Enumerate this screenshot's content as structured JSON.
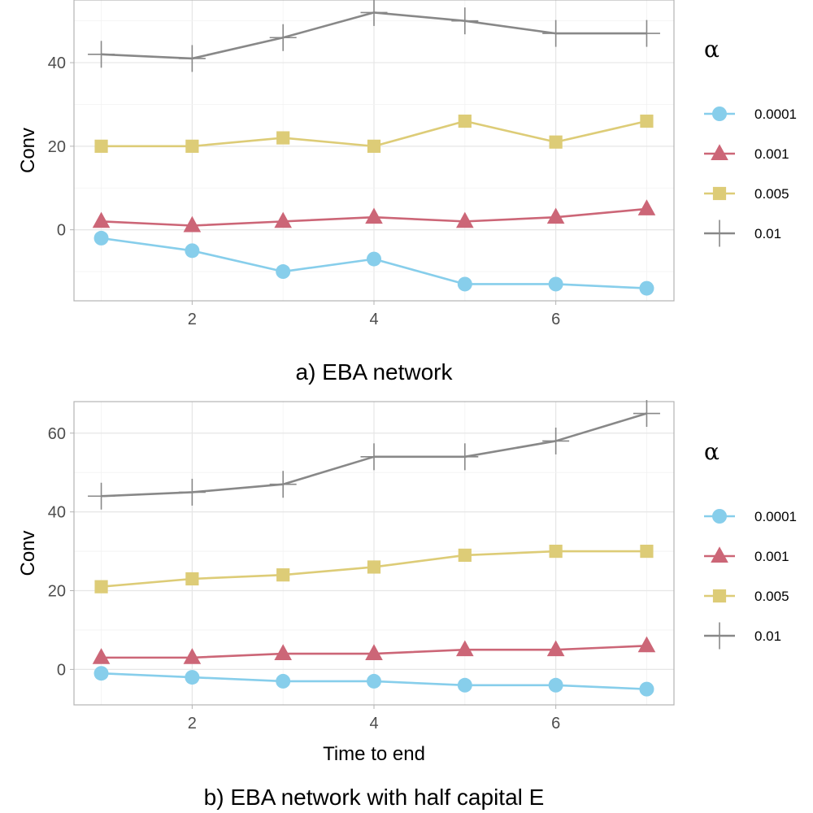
{
  "chart_data": [
    {
      "type": "line",
      "caption": "a) EBA network",
      "xlabel": "",
      "ylabel": "Conv",
      "x": [
        1,
        2,
        3,
        4,
        5,
        6,
        7
      ],
      "xlim": [
        0.7,
        7.3
      ],
      "ylim": [
        -17,
        55
      ],
      "xticks": [
        2,
        4,
        6
      ],
      "yticks": [
        0,
        20,
        40
      ],
      "grid": true,
      "legend_title": "α",
      "legend_position": "right",
      "series": [
        {
          "name": "0.0001",
          "color": "#87CEEB",
          "marker": "circle",
          "values": [
            -2,
            -5,
            -10,
            -7,
            -13,
            -13,
            -14
          ]
        },
        {
          "name": "0.001",
          "color": "#CC6677",
          "marker": "triangle",
          "values": [
            2,
            1,
            2,
            3,
            2,
            3,
            5
          ]
        },
        {
          "name": "0.005",
          "color": "#DDCC77",
          "marker": "square",
          "values": [
            20,
            20,
            22,
            20,
            26,
            21,
            26
          ]
        },
        {
          "name": "0.01",
          "color": "#888888",
          "marker": "plus",
          "values": [
            42,
            41,
            46,
            52,
            50,
            47,
            47
          ]
        }
      ]
    },
    {
      "type": "line",
      "caption": "b) EBA network with half capital E",
      "xlabel": "Time to end",
      "ylabel": "Conv",
      "x": [
        1,
        2,
        3,
        4,
        5,
        6,
        7
      ],
      "xlim": [
        0.7,
        7.3
      ],
      "ylim": [
        -9,
        68
      ],
      "xticks": [
        2,
        4,
        6
      ],
      "yticks": [
        0,
        20,
        40,
        60
      ],
      "grid": true,
      "legend_title": "α",
      "legend_position": "right",
      "series": [
        {
          "name": "0.0001",
          "color": "#87CEEB",
          "marker": "circle",
          "values": [
            -1,
            -2,
            -3,
            -3,
            -4,
            -4,
            -5
          ]
        },
        {
          "name": "0.001",
          "color": "#CC6677",
          "marker": "triangle",
          "values": [
            3,
            3,
            4,
            4,
            5,
            5,
            6
          ]
        },
        {
          "name": "0.005",
          "color": "#DDCC77",
          "marker": "square",
          "values": [
            21,
            23,
            24,
            26,
            29,
            30,
            30
          ]
        },
        {
          "name": "0.01",
          "color": "#888888",
          "marker": "plus",
          "values": [
            44,
            45,
            47,
            54,
            54,
            58,
            65
          ]
        }
      ]
    }
  ]
}
